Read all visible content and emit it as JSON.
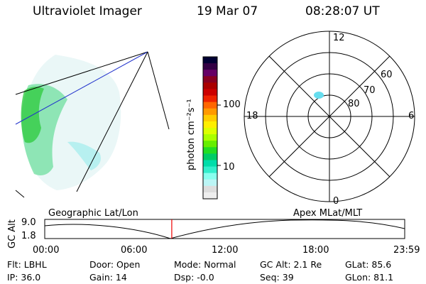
{
  "header": {
    "instrument": "Ultraviolet Imager",
    "date": "19 Mar 07",
    "time": "08:28:07 UT"
  },
  "colorbar": {
    "unit_label": "photon cm⁻²s⁻¹",
    "ticks": [
      "100",
      "10"
    ],
    "colors": [
      "#000033",
      "#330044",
      "#660066",
      "#880022",
      "#aa0000",
      "#cc0000",
      "#ee2200",
      "#ff6600",
      "#ff9900",
      "#ffcc00",
      "#ffee00",
      "#ddff00",
      "#aaff00",
      "#66ee00",
      "#22dd22",
      "#00cc66",
      "#00ddaa",
      "#33eecc",
      "#88ffee",
      "#bbf5f5",
      "#dddddd",
      "#eeeeee"
    ]
  },
  "polar_plot": {
    "mlt_labels": {
      "top": "12",
      "left": "18",
      "right": "6",
      "bottom": "0"
    },
    "lat_labels": [
      "60",
      "70",
      "80"
    ]
  },
  "timeline": {
    "axis_label": "GC Alt",
    "alt_max": "9.0",
    "alt_min": "1.8",
    "left_title": "Geographic Lat/Lon",
    "right_title": "Apex  MLat/MLT",
    "time_ticks": [
      "00:00",
      "06:00",
      "12:00",
      "18:00",
      "23:59"
    ],
    "current_time_fraction": 0.3529
  },
  "status": {
    "filter": "Flt: LBHL",
    "door": "Door: Open",
    "mode": "Mode: Normal",
    "gc_alt": "GC Alt: 2.1 Re",
    "glat": "GLat:  85.6",
    "ip": "IP: 36.0",
    "gain": "Gain: 14",
    "dsp": "Dsp:   -0.0",
    "seq": "Seq: 39",
    "glon": "GLon:  81.1"
  }
}
